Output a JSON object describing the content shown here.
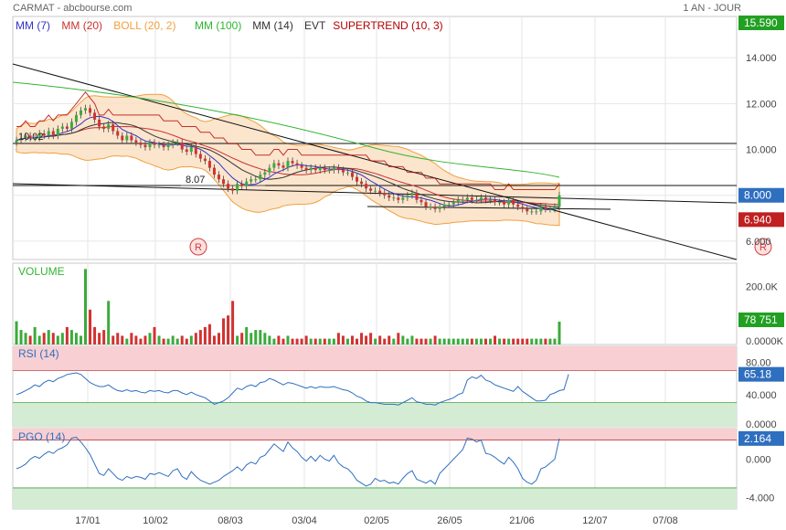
{
  "header": {
    "title": "CARMAT - abcbourse.com",
    "period": "1 AN - JOUR"
  },
  "colors": {
    "up": "#3caa3c",
    "down": "#d23232",
    "mm7": "#3232c8",
    "mm20": "#c83232",
    "boll": "#f0a040",
    "bollFill": "#fbe1c4",
    "mm100": "#32b432",
    "mm14": "#333333",
    "supertrend": "#b40000",
    "rsi": "#2f6fbf",
    "pgo": "#2f6fbf",
    "overbought": "#f8cfd2",
    "oversold": "#d4ebd4",
    "lastPrice": "#22a022",
    "blueTag": "#2f6fbf",
    "redTag": "#c02020"
  },
  "legend": [
    {
      "label": "MM (7)",
      "color": "#3232c8"
    },
    {
      "label": "MM (20)",
      "color": "#c83232"
    },
    {
      "label": "BOLL (20, 2)",
      "color": "#f0a040"
    },
    {
      "label": "MM (100)",
      "color": "#32b432"
    },
    {
      "label": "MM (14)",
      "color": "#333333"
    },
    {
      "label": "EVT",
      "color": "#333333"
    },
    {
      "label": "SUPERTREND (10, 3)",
      "color": "#b40000"
    }
  ],
  "price_axis": {
    "labels": [
      "14.000",
      "12.000",
      "10.000",
      "8.000",
      "6.000"
    ],
    "top_tag": "15.590",
    "level_tag": "8.000",
    "last_tag": "6.940",
    "bottom_tag": "6.000"
  },
  "annotations": {
    "high_note": "10.02",
    "low_note": "8.07",
    "event_marker": "R"
  },
  "volume": {
    "title": "VOLUME",
    "labels": [
      "200.0K",
      "0.0000K"
    ],
    "last": "78 751"
  },
  "rsi": {
    "title": "RSI (14)",
    "labels": [
      "80.00",
      "40.000",
      "0.0000"
    ],
    "last": "65.18"
  },
  "pgo": {
    "title": "PGO (14)",
    "labels": [
      "0.000",
      "-4.000"
    ],
    "last": "2.164"
  },
  "x_labels": [
    "17/01",
    "10/02",
    "08/03",
    "03/04",
    "02/05",
    "26/05",
    "21/06",
    "12/07",
    "07/08"
  ],
  "chart_data": [
    {
      "type": "candlestick",
      "title": "CARMAT",
      "ylim": [
        5.2,
        15.8
      ],
      "close": [
        10.4,
        10.5,
        10.6,
        10.5,
        10.5,
        10.7,
        10.6,
        10.8,
        10.6,
        10.9,
        11,
        10.9,
        11.2,
        11.5,
        11.7,
        11.8,
        11.6,
        11.3,
        11,
        10.9,
        11.1,
        10.8,
        10.6,
        10.4,
        10.6,
        10.4,
        10.3,
        10.2,
        10.1,
        10.3,
        10.2,
        10.2,
        10.1,
        10.2,
        10.3,
        10.3,
        10,
        9.9,
        10.1,
        9.8,
        9.6,
        9.5,
        9.2,
        8.9,
        8.7,
        8.5,
        8.3,
        8.2,
        8.5,
        8.4,
        8.6,
        8.7,
        8.7,
        8.9,
        9,
        9.2,
        9.4,
        9.3,
        9.2,
        9.5,
        9.4,
        9.3,
        9.2,
        9.1,
        9.2,
        9.1,
        9.2,
        9.1,
        9.1,
        9.2,
        9.1,
        9,
        9,
        8.8,
        8.6,
        8.5,
        8.3,
        8.2,
        8.2,
        8.1,
        8,
        7.9,
        7.9,
        7.8,
        7.9,
        8,
        8.1,
        7.8,
        7.7,
        7.5,
        7.5,
        7.4,
        7.5,
        7.6,
        7.6,
        7.7,
        7.8,
        7.8,
        7.9,
        7.8,
        7.8,
        7.9,
        7.8,
        7.8,
        7.7,
        7.7,
        7.6,
        7.8,
        7.6,
        7.5,
        7.4,
        7.3,
        7.3,
        7.3,
        7.5,
        7.4,
        7.4,
        7.5,
        8
      ],
      "volume_k": [
        80,
        50,
        40,
        30,
        60,
        30,
        40,
        50,
        40,
        30,
        40,
        60,
        50,
        40,
        30,
        260,
        120,
        60,
        40,
        50,
        150,
        30,
        40,
        30,
        20,
        40,
        30,
        20,
        30,
        40,
        60,
        30,
        20,
        20,
        30,
        20,
        30,
        20,
        30,
        40,
        50,
        60,
        70,
        30,
        40,
        90,
        100,
        150,
        30,
        40,
        60,
        40,
        50,
        50,
        40,
        30,
        20,
        30,
        20,
        30,
        20,
        20,
        20,
        30,
        20,
        20,
        20,
        20,
        20,
        20,
        40,
        30,
        20,
        30,
        20,
        40,
        30,
        40,
        20,
        30,
        20,
        30,
        20,
        40,
        30,
        20,
        30,
        20,
        20,
        20,
        20,
        30,
        20,
        20,
        20,
        20,
        20,
        20,
        20,
        20,
        20,
        20,
        20,
        20,
        30,
        20,
        20,
        20,
        20,
        20,
        20,
        20,
        20,
        20,
        20,
        20,
        20,
        20,
        78.751
      ],
      "mm100_range": [
        12.5,
        8.4
      ]
    },
    {
      "type": "line",
      "title": "RSI (14)",
      "ylim": [
        0,
        100
      ],
      "values": [
        40,
        42,
        45,
        48,
        52,
        50,
        55,
        58,
        56,
        60,
        62,
        65,
        66,
        67,
        65,
        60,
        55,
        52,
        50,
        50,
        52,
        48,
        45,
        44,
        46,
        44,
        45,
        43,
        42,
        45,
        44,
        45,
        43,
        42,
        45,
        45,
        42,
        40,
        43,
        40,
        38,
        36,
        32,
        28,
        30,
        32,
        36,
        42,
        48,
        46,
        50,
        52,
        50,
        55,
        56,
        60,
        58,
        55,
        52,
        55,
        54,
        52,
        50,
        48,
        50,
        48,
        50,
        49,
        49,
        50,
        48,
        46,
        45,
        42,
        38,
        36,
        32,
        30,
        30,
        29,
        28,
        28,
        28,
        27,
        30,
        33,
        36,
        31,
        30,
        28,
        28,
        27,
        30,
        32,
        34,
        36,
        40,
        42,
        58,
        62,
        60,
        64,
        58,
        56,
        52,
        50,
        48,
        46,
        44,
        50,
        44,
        40,
        36,
        32,
        32,
        33,
        40,
        42,
        45,
        46,
        65.18
      ]
    },
    {
      "type": "line",
      "title": "PGO (14)",
      "ylim": [
        -5.2,
        3.2
      ],
      "values": [
        -1,
        -0.8,
        -0.5,
        0,
        0.3,
        0.1,
        0.5,
        0.8,
        0.6,
        1,
        1.2,
        1.5,
        2.2,
        2.3,
        1.8,
        1.2,
        0.5,
        -0.5,
        -1.5,
        -1.7,
        -1,
        -1.5,
        -2,
        -2.2,
        -1.8,
        -2,
        -1.8,
        -1.9,
        -2.1,
        -1.5,
        -1.6,
        -1.4,
        -1.6,
        -1.8,
        -1.2,
        -1,
        -1.8,
        -2.1,
        -1.3,
        -1.8,
        -2.2,
        -2.4,
        -2.6,
        -2.4,
        -2.2,
        -1.8,
        -1.5,
        -1.2,
        -0.8,
        -1.2,
        -0.6,
        -0.3,
        -0.5,
        0.2,
        0.4,
        1,
        1.6,
        1.2,
        0.8,
        1.8,
        1.2,
        0.8,
        0.2,
        -0.2,
        0.3,
        -0.2,
        0.4,
        0,
        -0.2,
        0.4,
        -0.4,
        -0.8,
        -1,
        -1.5,
        -2.2,
        -2.5,
        -2.8,
        -2.6,
        -2,
        -2.3,
        -2.2,
        -2.5,
        -2.4,
        -2.6,
        -2,
        -1.5,
        -1.2,
        -2.1,
        -2.3,
        -2.5,
        -2.2,
        -2.6,
        -1.5,
        -1,
        -0.5,
        0,
        0.5,
        1,
        2.2,
        2.1,
        1.8,
        2,
        0.6,
        0.5,
        0.2,
        -0.2,
        -0.5,
        0.2,
        -0.3,
        -1,
        -2,
        -2.4,
        -2.6,
        -2.2,
        -1,
        -0.8,
        -0.4,
        0,
        2.164
      ]
    }
  ]
}
